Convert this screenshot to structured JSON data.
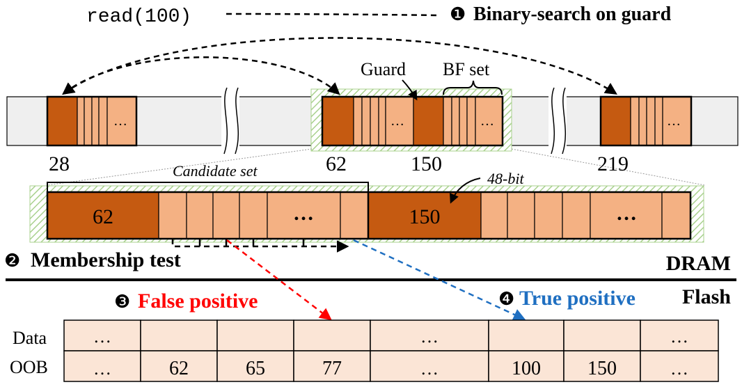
{
  "top": {
    "read_call": "read(100)",
    "step1_number": "❶",
    "step1_label": "Binary-search on guard",
    "guard_label": "Guard",
    "bf_set_label": "BF set",
    "ellipsis": "…",
    "guard_keys": [
      "28",
      "62",
      "150",
      "219"
    ]
  },
  "zoom": {
    "candidate_set_label": "Candidate set",
    "bit_label": "48-bit",
    "guard_values": [
      "62",
      "150"
    ],
    "ellipsis": "…"
  },
  "membership": {
    "step2_number": "❷",
    "step2_label": "Membership test"
  },
  "memory": {
    "dram_label": "DRAM",
    "flash_label": "Flash"
  },
  "results": {
    "step3_number": "❸",
    "false_positive_label": "False positive",
    "step4_number": "❹",
    "true_positive_label": "True positive",
    "false_color": "#ff0000",
    "true_color": "#1f6fc1"
  },
  "flash_table": {
    "row_labels": [
      "Data",
      "OOB"
    ],
    "data_row": [
      "…",
      "",
      "",
      "",
      "…",
      "",
      "",
      "…"
    ],
    "oob_row": [
      "…",
      "62",
      "65",
      "77",
      "…",
      "100",
      "150",
      "…"
    ]
  }
}
